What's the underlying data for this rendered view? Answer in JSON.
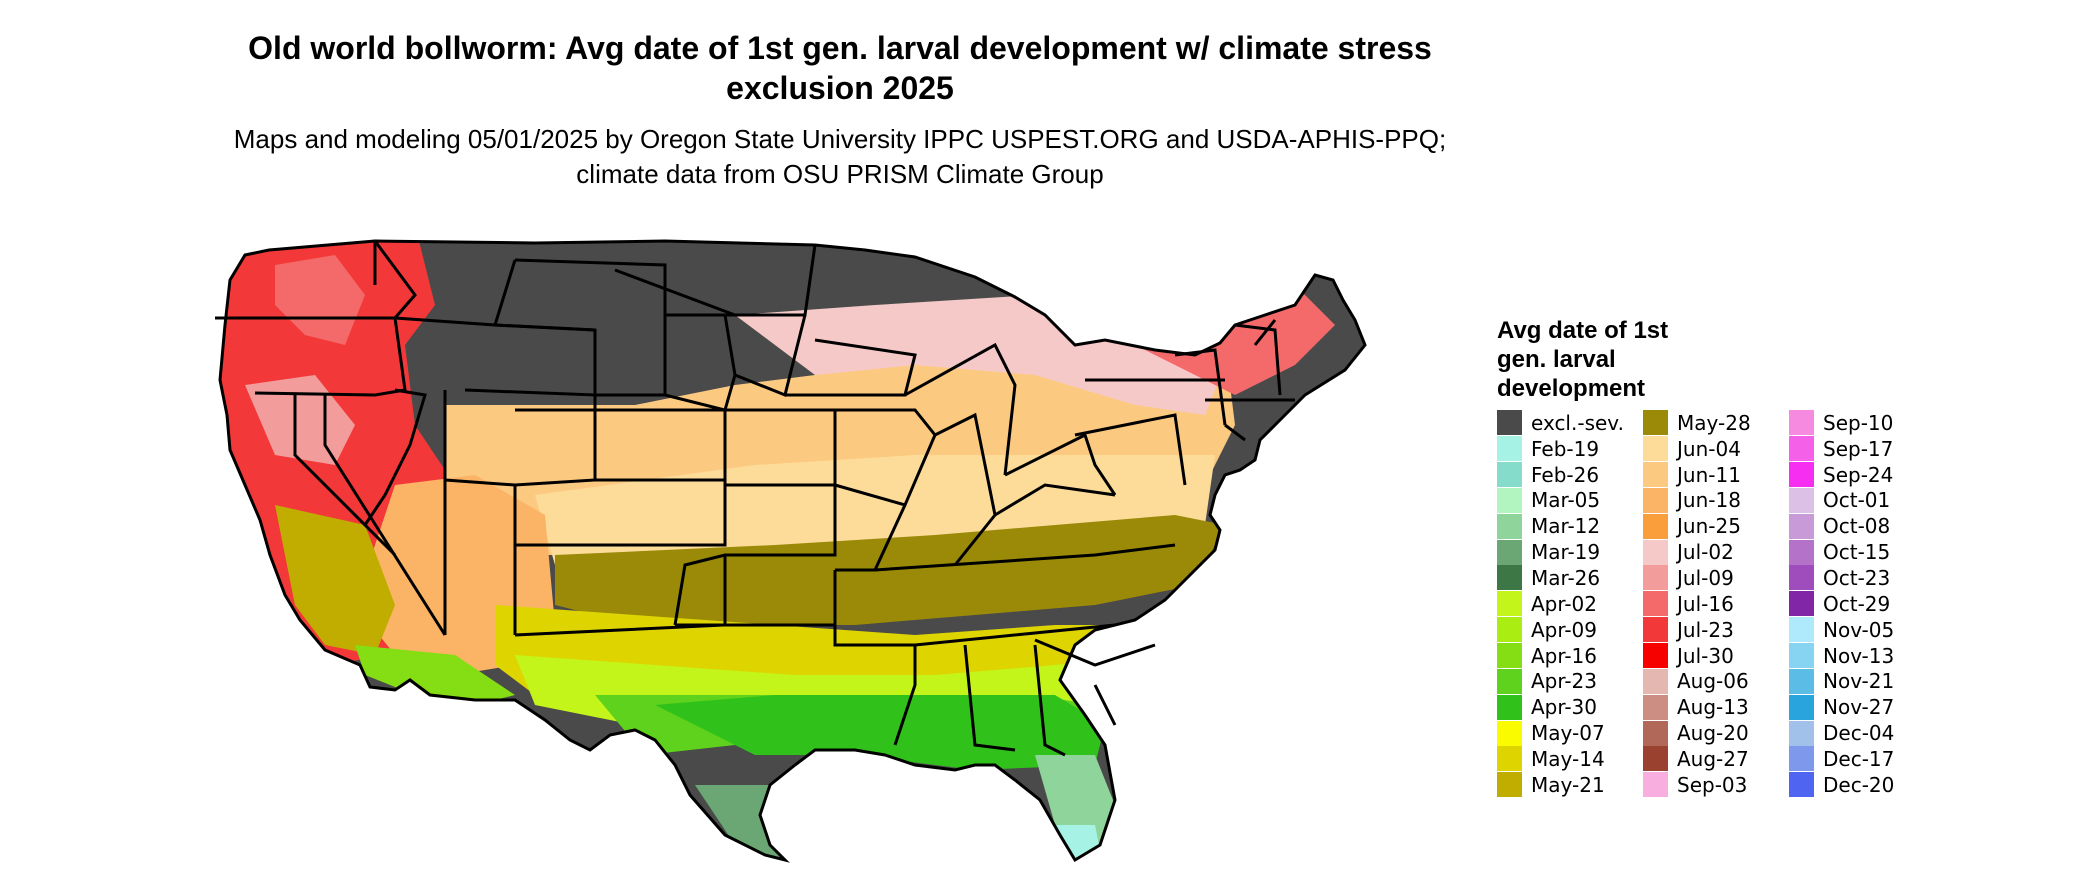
{
  "title": "Old world bollworm: Avg date of 1st gen. larval development w/ climate stress exclusion 2025",
  "subtitle": "Maps and modeling 05/01/2025 by Oregon State University IPPC USPEST.ORG and USDA-APHIS-PPQ; climate data from OSU PRISM Climate Group",
  "legend": {
    "title": "Avg date of 1st gen. larval development",
    "items": [
      {
        "label": "excl.-sev.",
        "color": "#4a4a4a"
      },
      {
        "label": "Feb-19",
        "color": "#a6f3e5"
      },
      {
        "label": "Feb-26",
        "color": "#85dcca"
      },
      {
        "label": "Mar-05",
        "color": "#b3f5c0"
      },
      {
        "label": "Mar-12",
        "color": "#8ed49b"
      },
      {
        "label": "Mar-19",
        "color": "#6aa774"
      },
      {
        "label": "Mar-26",
        "color": "#3e7746"
      },
      {
        "label": "Apr-02",
        "color": "#c4f51a"
      },
      {
        "label": "Apr-09",
        "color": "#a9ed12"
      },
      {
        "label": "Apr-16",
        "color": "#85dd13"
      },
      {
        "label": "Apr-23",
        "color": "#5ed21c"
      },
      {
        "label": "Apr-30",
        "color": "#30c21a"
      },
      {
        "label": "May-07",
        "color": "#fbfb00"
      },
      {
        "label": "May-14",
        "color": "#ddd400"
      },
      {
        "label": "May-21",
        "color": "#c0ad00"
      },
      {
        "label": "May-28",
        "color": "#9a8a08"
      },
      {
        "label": "Jun-04",
        "color": "#fddc9a"
      },
      {
        "label": "Jun-11",
        "color": "#fcc981"
      },
      {
        "label": "Jun-18",
        "color": "#fbb465"
      },
      {
        "label": "Jun-25",
        "color": "#fa9e3c"
      },
      {
        "label": "Jul-02",
        "color": "#f6c9c9"
      },
      {
        "label": "Jul-09",
        "color": "#f29c9c"
      },
      {
        "label": "Jul-16",
        "color": "#f46a6a"
      },
      {
        "label": "Jul-23",
        "color": "#f23838"
      },
      {
        "label": "Jul-30",
        "color": "#f60000"
      },
      {
        "label": "Aug-06",
        "color": "#e4b8b0"
      },
      {
        "label": "Aug-13",
        "color": "#cc8d83"
      },
      {
        "label": "Aug-20",
        "color": "#b16859"
      },
      {
        "label": "Aug-27",
        "color": "#9a4130"
      },
      {
        "label": "Sep-03",
        "color": "#f8afe0"
      },
      {
        "label": "Sep-10",
        "color": "#f58ae0"
      },
      {
        "label": "Sep-17",
        "color": "#f560e8"
      },
      {
        "label": "Sep-24",
        "color": "#f52ef2"
      },
      {
        "label": "Oct-01",
        "color": "#dcc0e6"
      },
      {
        "label": "Oct-08",
        "color": "#c99ad8"
      },
      {
        "label": "Oct-15",
        "color": "#b472c8"
      },
      {
        "label": "Oct-23",
        "color": "#9f4cbd"
      },
      {
        "label": "Oct-29",
        "color": "#8226a8"
      },
      {
        "label": "Nov-05",
        "color": "#aeeafc"
      },
      {
        "label": "Nov-13",
        "color": "#87d3f2"
      },
      {
        "label": "Nov-21",
        "color": "#5bbde6"
      },
      {
        "label": "Nov-27",
        "color": "#2aa4dc"
      },
      {
        "label": "Dec-04",
        "color": "#a1c0ea"
      },
      {
        "label": "Dec-17",
        "color": "#7e99ec"
      },
      {
        "label": "Dec-20",
        "color": "#5064f2"
      }
    ]
  }
}
